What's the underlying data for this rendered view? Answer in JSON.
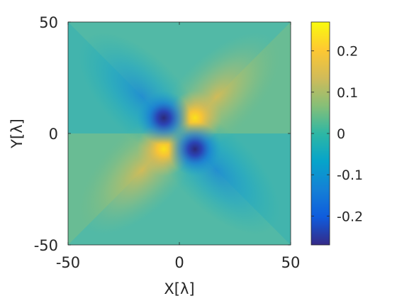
{
  "chart_data": {
    "type": "heatmap",
    "title": "",
    "xlabel": "X[λ]",
    "ylabel": "Y[λ]",
    "xlim": [
      -50,
      50
    ],
    "ylim": [
      -50,
      50
    ],
    "xticks": [
      "-50",
      "0",
      "50"
    ],
    "yticks": [
      "50",
      "0",
      "-50"
    ],
    "colorbar": {
      "min": -0.27,
      "max": 0.27,
      "ticks": [
        "0.2",
        "0.1",
        "0",
        "-0.1",
        "-0.2"
      ],
      "tick_values": [
        0.2,
        0.1,
        0,
        -0.1,
        -0.2
      ],
      "colormap": "parula",
      "colors": [
        "#352a87",
        "#0f5cdd",
        "#1481d6",
        "#06a4ca",
        "#2eb7a4",
        "#87bf77",
        "#d1bb59",
        "#fec832",
        "#f9fb0e"
      ]
    },
    "pattern": "quadrupole",
    "extrema": [
      {
        "label": "positive peak",
        "x": 7,
        "y": 7,
        "value": 0.27
      },
      {
        "label": "positive peak",
        "x": -7,
        "y": -7,
        "value": 0.27
      },
      {
        "label": "negative peak",
        "x": -7,
        "y": 7,
        "value": -0.27
      },
      {
        "label": "negative peak",
        "x": 7,
        "y": -7,
        "value": -0.27
      }
    ]
  }
}
